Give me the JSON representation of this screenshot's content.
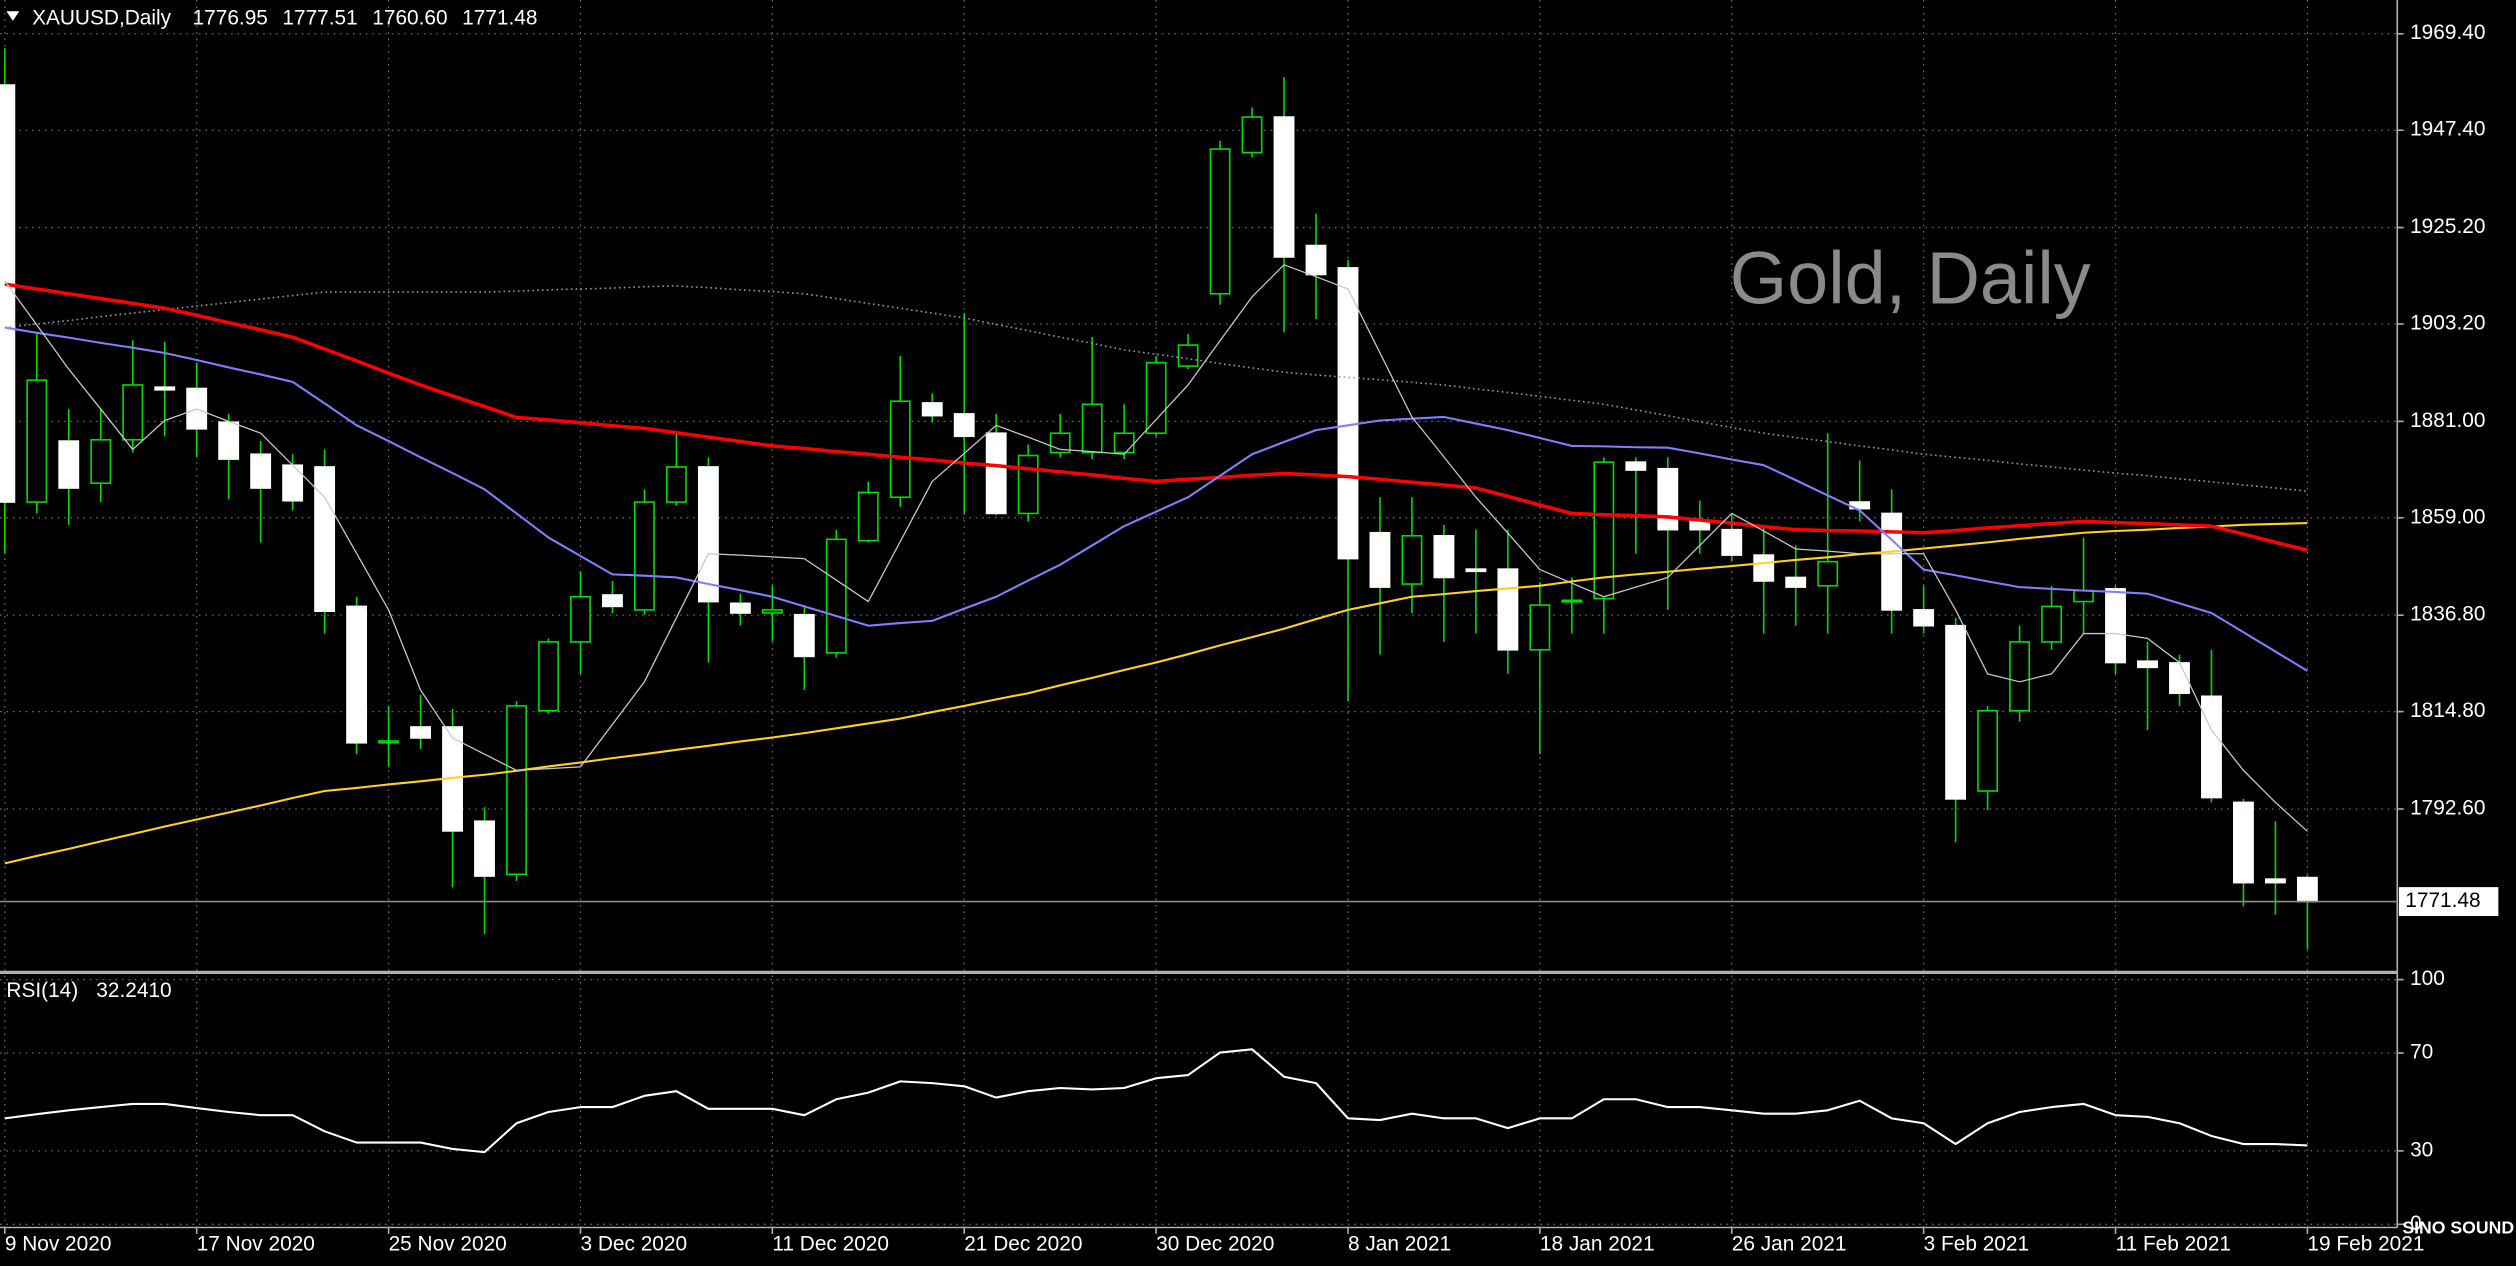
{
  "chart_data": [
    {
      "type": "candlestick",
      "title": "XAUUSD,Daily",
      "ohlc_labels": [
        "1776.95",
        "1777.51",
        "1760.60",
        "1771.48"
      ],
      "annotation": "Gold, Daily",
      "categories": [
        "9 Nov 2020",
        null,
        null,
        null,
        null,
        null,
        "17 Nov 2020",
        null,
        null,
        null,
        null,
        null,
        "25 Nov 2020",
        null,
        null,
        null,
        null,
        null,
        "3 Dec 2020",
        null,
        null,
        null,
        null,
        null,
        "11 Dec 2020",
        null,
        null,
        null,
        null,
        null,
        "21 Dec 2020",
        null,
        null,
        null,
        null,
        null,
        "30 Dec 2020",
        null,
        null,
        null,
        null,
        null,
        "8 Jan 2021",
        null,
        null,
        null,
        null,
        null,
        "18 Jan 2021",
        null,
        null,
        null,
        null,
        null,
        "26 Jan 2021",
        null,
        null,
        null,
        null,
        null,
        "3 Feb 2021",
        null,
        null,
        null,
        null,
        null,
        "11 Feb 2021",
        null,
        null,
        null,
        null,
        null,
        "19 Feb 2021"
      ],
      "open": [
        1957.7,
        1862.6,
        1876.5,
        1866.9,
        1876.8,
        1888.8,
        1888.5,
        1880.8,
        1873.5,
        1871.0,
        1870.6,
        1838.8,
        1807.7,
        1811.3,
        1811.3,
        1789.8,
        1777.7,
        1815.0,
        1830.7,
        1841.4,
        1838.0,
        1862.6,
        1870.6,
        1839.5,
        1837.3,
        1836.9,
        1828.2,
        1853.8,
        1863.7,
        1885.2,
        1882.7,
        1878.3,
        1860.0,
        1873.9,
        1873.9,
        1873.9,
        1878.3,
        1893.6,
        1910.1,
        1942.3,
        1950.4,
        1921.1,
        1916.0,
        1855.6,
        1843.9,
        1854.9,
        1847.3,
        1847.3,
        1828.9,
        1839.9,
        1840.6,
        1871.7,
        1870.2,
        1858.2,
        1856.3,
        1850.5,
        1845.4,
        1843.5,
        1862.6,
        1860.0,
        1838.0,
        1834.4,
        1796.7,
        1815.0,
        1830.7,
        1839.9,
        1842.8,
        1826.3,
        1825.9,
        1818.3,
        1794.1,
        1776.6,
        1776.95
      ],
      "high": [
        1966.1,
        1901.3,
        1883.8,
        1883.8,
        1899.5,
        1899.1,
        1894.4,
        1882.7,
        1876.5,
        1873.5,
        1874.6,
        1841.0,
        1816.1,
        1818.6,
        1815.4,
        1793.0,
        1817.2,
        1831.5,
        1846.8,
        1844.6,
        1865.5,
        1878.3,
        1872.8,
        1841.7,
        1843.5,
        1839.1,
        1856.3,
        1867.3,
        1895.9,
        1887.4,
        1905.7,
        1882.7,
        1875.7,
        1882.7,
        1900.2,
        1884.9,
        1895.9,
        1901.0,
        1945.0,
        1952.6,
        1959.5,
        1928.4,
        1917.8,
        1863.7,
        1863.7,
        1857.4,
        1856.3,
        1856.3,
        1844.3,
        1845.4,
        1872.8,
        1872.8,
        1872.8,
        1862.9,
        1860.0,
        1857.4,
        1852.7,
        1878.3,
        1872.1,
        1865.5,
        1843.5,
        1836.2,
        1816.1,
        1834.4,
        1843.5,
        1854.5,
        1843.5,
        1830.7,
        1827.8,
        1828.9,
        1794.9,
        1789.8,
        1777.51
      ],
      "low": [
        1850.8,
        1860.0,
        1857.4,
        1862.6,
        1873.9,
        1877.6,
        1872.8,
        1863.3,
        1853.4,
        1860.7,
        1832.6,
        1805.1,
        1802.2,
        1806.2,
        1774.7,
        1764.1,
        1776.2,
        1814.3,
        1823.4,
        1837.3,
        1836.9,
        1861.8,
        1826.0,
        1834.4,
        1830.8,
        1819.7,
        1827.1,
        1853.4,
        1861.5,
        1880.8,
        1860.0,
        1859.6,
        1858.2,
        1872.8,
        1872.4,
        1872.4,
        1877.6,
        1892.9,
        1907.6,
        1941.2,
        1901.3,
        1904.3,
        1817.2,
        1827.8,
        1837.3,
        1830.7,
        1832.6,
        1823.4,
        1805.1,
        1832.6,
        1832.6,
        1850.8,
        1838.0,
        1850.8,
        1849.0,
        1832.6,
        1834.4,
        1832.6,
        1858.2,
        1832.6,
        1832.6,
        1785.0,
        1792.3,
        1812.5,
        1828.9,
        1832.6,
        1823.4,
        1810.6,
        1816.1,
        1794.1,
        1770.4,
        1768.5,
        1760.6
      ],
      "close": [
        1862.6,
        1890.4,
        1865.8,
        1876.8,
        1889.3,
        1888.2,
        1879.3,
        1872.4,
        1865.8,
        1862.9,
        1837.7,
        1807.7,
        1808.1,
        1808.8,
        1787.6,
        1777.3,
        1816.1,
        1830.7,
        1841.0,
        1838.8,
        1862.6,
        1870.6,
        1839.9,
        1837.3,
        1838.0,
        1827.4,
        1854.1,
        1864.8,
        1885.6,
        1882.3,
        1877.6,
        1860.0,
        1873.2,
        1878.3,
        1884.9,
        1878.3,
        1894.4,
        1898.4,
        1943.1,
        1950.4,
        1918.5,
        1914.5,
        1849.7,
        1843.2,
        1854.9,
        1845.4,
        1846.8,
        1828.9,
        1839.1,
        1840.2,
        1871.7,
        1869.9,
        1856.3,
        1856.3,
        1850.5,
        1844.6,
        1843.2,
        1849.0,
        1861.1,
        1838.0,
        1834.4,
        1794.9,
        1815.0,
        1830.7,
        1838.8,
        1842.4,
        1826.0,
        1824.9,
        1819.0,
        1795.2,
        1775.8,
        1775.8,
        1771.48
      ],
      "up_color": "#000000",
      "down_color": "#ffffff",
      "wick_color": "#00dd00",
      "series": [
        {
          "color": "#9a9a9a",
          "style": "dotted",
          "values": [
            1902.4,
            1903.2,
            1904.0,
            1904.9,
            1905.7,
            1906.5,
            1907.3,
            1908.1,
            1908.9,
            1909.7,
            1910.5,
            1910.5,
            1910.5,
            1910.5,
            1910.5,
            1910.5,
            1910.7,
            1911.0,
            1911.2,
            1911.4,
            1911.7,
            1911.9,
            1911.5,
            1911.0,
            1910.6,
            1910.1,
            1909.0,
            1907.9,
            1906.8,
            1905.7,
            1904.6,
            1903.1,
            1901.7,
            1900.2,
            1898.8,
            1897.3,
            1896.3,
            1895.3,
            1894.2,
            1893.2,
            1892.2,
            1891.6,
            1891.0,
            1890.5,
            1889.9,
            1889.3,
            1888.4,
            1887.6,
            1886.7,
            1885.8,
            1884.9,
            1883.6,
            1882.3,
            1880.9,
            1879.6,
            1878.3,
            1877.3,
            1876.4,
            1875.4,
            1874.5,
            1873.5,
            1872.8,
            1872.1,
            1871.3,
            1870.6,
            1869.9,
            1869.2,
            1868.6,
            1867.9,
            1867.2,
            1866.5,
            1865.8,
            1865.1
          ]
        },
        {
          "color": "#ffd21e",
          "style": "solid",
          "values": [
            1780.2,
            1781.9,
            1783.5,
            1785.2,
            1786.9,
            1788.6,
            1790.2,
            1791.8,
            1793.4,
            1795.1,
            1796.7,
            1797.4,
            1798.2,
            1798.9,
            1799.7,
            1800.4,
            1801.3,
            1802.3,
            1803.2,
            1804.2,
            1805.1,
            1806.1,
            1807.0,
            1808.0,
            1808.9,
            1809.9,
            1811.0,
            1812.1,
            1813.2,
            1814.7,
            1816.1,
            1817.6,
            1819.0,
            1820.8,
            1822.5,
            1824.3,
            1826.0,
            1827.9,
            1829.9,
            1831.8,
            1833.7,
            1835.9,
            1838.0,
            1839.5,
            1841.0,
            1841.6,
            1842.3,
            1842.9,
            1843.5,
            1844.5,
            1845.4,
            1846.1,
            1846.7,
            1847.4,
            1848.0,
            1848.7,
            1849.4,
            1850.0,
            1850.7,
            1851.3,
            1852.0,
            1852.7,
            1853.4,
            1854.2,
            1854.9,
            1855.6,
            1856.0,
            1856.3,
            1856.7,
            1857.0,
            1857.4,
            1857.6,
            1857.8
          ]
        },
        {
          "color": "#ff0000",
          "style": "bold",
          "values": [
            1912.3,
            1911.2,
            1910.1,
            1909.0,
            1907.9,
            1906.8,
            1905.2,
            1903.5,
            1901.9,
            1900.2,
            1897.5,
            1894.8,
            1892.0,
            1889.3,
            1886.8,
            1884.4,
            1881.9,
            1881.3,
            1880.7,
            1880.0,
            1879.4,
            1878.4,
            1877.4,
            1876.4,
            1875.4,
            1874.8,
            1874.1,
            1873.5,
            1872.8,
            1872.2,
            1871.5,
            1870.9,
            1870.2,
            1869.5,
            1868.8,
            1868.0,
            1867.3,
            1867.8,
            1868.2,
            1868.7,
            1869.1,
            1868.8,
            1868.4,
            1867.8,
            1867.1,
            1866.5,
            1865.8,
            1863.9,
            1861.9,
            1860.0,
            1859.7,
            1859.5,
            1859.2,
            1858.5,
            1857.8,
            1857.0,
            1856.3,
            1856.1,
            1856.0,
            1855.8,
            1855.6,
            1856.1,
            1856.7,
            1857.2,
            1857.7,
            1858.2,
            1857.9,
            1857.7,
            1857.4,
            1857.1,
            1855.3,
            1853.4,
            1851.6
          ]
        },
        {
          "color": "#7f7fff",
          "style": "solid",
          "values": [
            1902.4,
            1901.2,
            1900.1,
            1898.9,
            1897.8,
            1896.6,
            1895.0,
            1893.3,
            1891.7,
            1890.0,
            1885.1,
            1880.1,
            1876.5,
            1872.8,
            1869.2,
            1865.5,
            1860.0,
            1854.5,
            1850.3,
            1846.1,
            1845.8,
            1845.4,
            1843.9,
            1842.5,
            1841.0,
            1838.8,
            1836.6,
            1834.4,
            1835.0,
            1835.5,
            1838.3,
            1841.0,
            1844.7,
            1848.3,
            1852.7,
            1857.1,
            1860.4,
            1863.7,
            1868.6,
            1873.5,
            1876.3,
            1879.0,
            1880.1,
            1881.2,
            1881.6,
            1882.0,
            1880.5,
            1879.0,
            1877.2,
            1875.4,
            1875.3,
            1875.1,
            1875.0,
            1873.7,
            1872.3,
            1871.0,
            1867.6,
            1864.1,
            1860.7,
            1854.0,
            1847.2,
            1845.9,
            1844.5,
            1843.2,
            1842.8,
            1842.4,
            1842.1,
            1841.7,
            1839.5,
            1837.3,
            1832.9,
            1828.5,
            1824.1
          ]
        },
        {
          "color": "#c8c8c8",
          "style": "thin",
          "values": [
            1913.0,
            1903.0,
            1892.9,
            1883.8,
            1874.6,
            1881.2,
            1883.8,
            1881.0,
            1878.3,
            1871.0,
            1863.7,
            1850.9,
            1838.0,
            1819.7,
            1808.8,
            1805.1,
            1801.4,
            1801.8,
            1802.2,
            1811.9,
            1821.6,
            1836.2,
            1850.8,
            1850.5,
            1850.1,
            1849.7,
            1844.8,
            1839.9,
            1853.6,
            1867.3,
            1873.7,
            1880.1,
            1877.4,
            1874.6,
            1874.1,
            1873.5,
            1881.4,
            1889.3,
            1899.4,
            1909.4,
            1916.7,
            1914.0,
            1911.2,
            1896.6,
            1882.0,
            1872.9,
            1863.7,
            1855.5,
            1847.2,
            1844.1,
            1841.0,
            1843.2,
            1845.4,
            1852.7,
            1860.0,
            1856.0,
            1851.9,
            1851.4,
            1850.8,
            1850.8,
            1850.8,
            1838.0,
            1823.4,
            1821.6,
            1823.4,
            1832.6,
            1832.6,
            1831.5,
            1826.0,
            1810.6,
            1801.4,
            1794.1,
            1787.5
          ]
        }
      ],
      "price_line": {
        "value": 1771.48,
        "label": "1771.48"
      },
      "ylim": [
        1755.7,
        1977.1
      ],
      "yticks": [
        {
          "value": 1969.4,
          "label": "1969.40"
        },
        {
          "value": 1947.4,
          "label": "1947.40"
        },
        {
          "value": 1925.2,
          "label": "1925.20"
        },
        {
          "value": 1903.2,
          "label": "1903.20"
        },
        {
          "value": 1881.0,
          "label": "1881.00"
        },
        {
          "value": 1859.0,
          "label": "1859.00"
        },
        {
          "value": 1836.8,
          "label": "1836.80"
        },
        {
          "value": 1814.8,
          "label": "1814.80"
        },
        {
          "value": 1792.6,
          "label": "1792.60"
        }
      ],
      "grid": true
    },
    {
      "type": "line",
      "title": "RSI(14)",
      "current_label": "32.2410",
      "color": "#ffffff",
      "values": [
        43.3,
        45.0,
        46.6,
        47.9,
        49.2,
        49.2,
        47.5,
        45.9,
        44.6,
        44.6,
        38.0,
        33.4,
        33.4,
        33.4,
        30.8,
        29.5,
        41.3,
        45.9,
        47.9,
        47.9,
        52.5,
        54.4,
        47.2,
        47.2,
        47.2,
        44.6,
        51.1,
        53.8,
        58.4,
        57.7,
        56.4,
        51.8,
        54.4,
        55.7,
        55.1,
        55.7,
        59.7,
        61.0,
        70.2,
        71.5,
        60.3,
        57.7,
        43.3,
        42.6,
        45.2,
        43.3,
        43.3,
        39.3,
        43.3,
        43.3,
        51.1,
        51.1,
        47.9,
        47.9,
        46.6,
        45.2,
        45.2,
        46.6,
        50.5,
        43.3,
        41.3,
        32.8,
        41.3,
        45.9,
        47.9,
        49.2,
        44.6,
        43.9,
        41.3,
        36.1,
        32.8,
        32.8,
        32.241
      ],
      "ylim": [
        -1.3,
        102.3
      ],
      "yticks": [
        100,
        70,
        30,
        0
      ],
      "grid": true
    }
  ],
  "watermark": "SINO SOUND"
}
